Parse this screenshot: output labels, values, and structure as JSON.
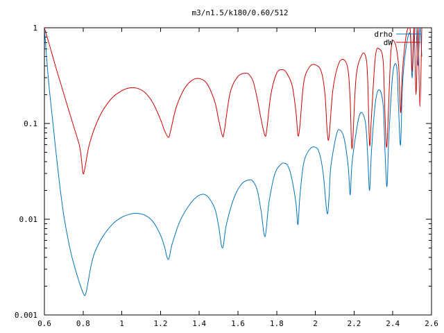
{
  "chart_data": {
    "type": "line",
    "title": "m3/n1.5/k180/0.60/512",
    "xlabel": "",
    "ylabel": "",
    "xlim": [
      0.6,
      2.6
    ],
    "ylim": [
      0.001,
      1
    ],
    "yscale": "log",
    "grid": false,
    "legend_position": "top-right",
    "x_ticks": [
      {
        "value": 0.6,
        "label": "0.6"
      },
      {
        "value": 0.8,
        "label": "0.8"
      },
      {
        "value": 1.0,
        "label": "1"
      },
      {
        "value": 1.2,
        "label": "1.2"
      },
      {
        "value": 1.4,
        "label": "1.4"
      },
      {
        "value": 1.6,
        "label": "1.6"
      },
      {
        "value": 1.8,
        "label": "1.8"
      },
      {
        "value": 2.0,
        "label": "2"
      },
      {
        "value": 2.2,
        "label": "2.2"
      },
      {
        "value": 2.4,
        "label": "2.4"
      },
      {
        "value": 2.6,
        "label": "2.6"
      }
    ],
    "y_ticks": [
      {
        "value": 1,
        "label": "1"
      },
      {
        "value": 0.1,
        "label": "0.1"
      },
      {
        "value": 0.01,
        "label": "0.01"
      },
      {
        "value": 0.001,
        "label": "0.001"
      }
    ],
    "series": [
      {
        "name": "drho",
        "color": "#0072bd",
        "x": [
          0.6,
          0.62,
          0.64,
          0.66,
          0.68,
          0.7,
          0.72,
          0.74,
          0.76,
          0.78,
          0.8,
          0.81,
          0.82,
          0.84,
          0.86,
          0.9,
          0.95,
          1.0,
          1.05,
          1.08,
          1.12,
          1.16,
          1.2,
          1.22,
          1.24,
          1.26,
          1.3,
          1.35,
          1.4,
          1.44,
          1.48,
          1.5,
          1.52,
          1.54,
          1.58,
          1.62,
          1.66,
          1.68,
          1.7,
          1.72,
          1.74,
          1.76,
          1.79,
          1.82,
          1.84,
          1.86,
          1.88,
          1.9,
          1.91,
          1.92,
          1.94,
          1.97,
          2.0,
          2.02,
          2.04,
          2.06,
          2.07,
          2.08,
          2.11,
          2.13,
          2.15,
          2.17,
          2.18,
          2.19,
          2.22,
          2.24,
          2.26,
          2.27,
          2.28,
          2.29,
          2.31,
          2.33,
          2.35,
          2.36,
          2.37,
          2.38,
          2.4,
          2.42,
          2.43,
          2.44,
          2.45,
          2.47,
          2.49,
          2.5,
          2.51,
          2.52,
          2.53,
          2.54,
          2.55
        ],
        "y": [
          1.0,
          0.3,
          0.12,
          0.05,
          0.022,
          0.011,
          0.0065,
          0.0042,
          0.003,
          0.0022,
          0.0017,
          0.0016,
          0.0019,
          0.0032,
          0.0045,
          0.0065,
          0.0088,
          0.0105,
          0.0114,
          0.0115,
          0.011,
          0.0095,
          0.0068,
          0.0052,
          0.0038,
          0.0055,
          0.0095,
          0.0142,
          0.0178,
          0.0175,
          0.013,
          0.0085,
          0.005,
          0.0088,
          0.0168,
          0.0235,
          0.0258,
          0.0245,
          0.02,
          0.012,
          0.0066,
          0.0148,
          0.0295,
          0.0372,
          0.0385,
          0.0355,
          0.0255,
          0.0145,
          0.0088,
          0.0175,
          0.0388,
          0.0535,
          0.0565,
          0.0495,
          0.0305,
          0.0117,
          0.016,
          0.0355,
          0.078,
          0.0845,
          0.068,
          0.035,
          0.018,
          0.0395,
          0.105,
          0.13,
          0.098,
          0.048,
          0.02,
          0.052,
          0.165,
          0.225,
          0.155,
          0.05,
          0.022,
          0.075,
          0.33,
          0.39,
          0.14,
          0.06,
          0.25,
          0.65,
          0.85,
          0.3,
          0.9,
          1.0,
          0.4,
          1.0,
          0.5
        ]
      },
      {
        "name": "dW",
        "color": "#cc0000",
        "x": [
          0.6,
          0.63,
          0.66,
          0.69,
          0.72,
          0.75,
          0.78,
          0.79,
          0.8,
          0.81,
          0.83,
          0.86,
          0.9,
          0.95,
          1.0,
          1.04,
          1.08,
          1.12,
          1.16,
          1.2,
          1.22,
          1.24,
          1.25,
          1.28,
          1.32,
          1.36,
          1.4,
          1.44,
          1.48,
          1.5,
          1.52,
          1.53,
          1.56,
          1.6,
          1.64,
          1.66,
          1.68,
          1.7,
          1.72,
          1.74,
          1.75,
          1.77,
          1.8,
          1.83,
          1.85,
          1.88,
          1.9,
          1.91,
          1.92,
          1.94,
          1.97,
          2.0,
          2.03,
          2.05,
          2.06,
          2.07,
          2.09,
          2.12,
          2.15,
          2.17,
          2.18,
          2.19,
          2.21,
          2.24,
          2.26,
          2.27,
          2.28,
          2.29,
          2.31,
          2.33,
          2.35,
          2.36,
          2.37,
          2.39,
          2.41,
          2.43,
          2.44,
          2.45,
          2.47,
          2.49,
          2.5,
          2.51,
          2.52,
          2.53,
          2.54,
          2.55
        ],
        "y": [
          1.0,
          0.62,
          0.38,
          0.24,
          0.15,
          0.095,
          0.06,
          0.045,
          0.03,
          0.035,
          0.058,
          0.09,
          0.135,
          0.185,
          0.22,
          0.235,
          0.233,
          0.21,
          0.165,
          0.11,
          0.085,
          0.072,
          0.08,
          0.145,
          0.225,
          0.28,
          0.295,
          0.26,
          0.17,
          0.11,
          0.074,
          0.085,
          0.21,
          0.31,
          0.335,
          0.32,
          0.27,
          0.18,
          0.11,
          0.074,
          0.09,
          0.2,
          0.335,
          0.365,
          0.34,
          0.25,
          0.13,
          0.075,
          0.095,
          0.27,
          0.39,
          0.41,
          0.35,
          0.2,
          0.09,
          0.07,
          0.22,
          0.42,
          0.46,
          0.35,
          0.17,
          0.055,
          0.3,
          0.52,
          0.5,
          0.3,
          0.06,
          0.12,
          0.5,
          0.6,
          0.45,
          0.12,
          0.06,
          0.55,
          0.7,
          0.4,
          0.13,
          0.35,
          0.85,
          0.95,
          0.35,
          1.0,
          0.2,
          1.0,
          0.15,
          1.0
        ]
      }
    ]
  }
}
